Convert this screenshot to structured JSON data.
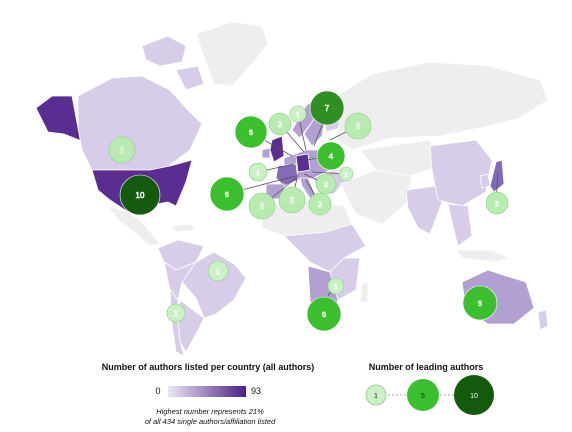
{
  "map": {
    "choropleth_legend": {
      "title": "Number of authors listed per country (all authors)",
      "min_label": "0",
      "max_label": "93",
      "color_min": "#ece7f4",
      "color_max": "#4b1f84",
      "note_line1": "Highest number represents 21%",
      "note_line2": "of all 434 single authors/affiliation listed"
    },
    "bubble_legend": {
      "title": "Number of leading authors",
      "items": [
        {
          "label": "1",
          "value": 1,
          "color": "#c9f1c4"
        },
        {
          "label": "5",
          "value": 5,
          "color": "#3cbf2e"
        },
        {
          "label": "10",
          "value": 10,
          "color": "#145a0d"
        }
      ]
    },
    "colors": {
      "land_default": "#eeeeee",
      "border": "#ffffff",
      "purple_light": "#d8cde8",
      "purple_mid": "#b3a0d2",
      "purple_dark": "#5a2e91",
      "bubble_1": "#c9f1c4",
      "bubble_2_3": "#b8ebb0",
      "bubble_4_5": "#3cbf2e",
      "bubble_7": "#2e8f22",
      "bubble_10": "#145a0d"
    },
    "leading_author_bubbles": [
      {
        "country": "Canada",
        "label": "2",
        "value": 2
      },
      {
        "country": "United States",
        "label": "10",
        "value": 10
      },
      {
        "country": "Brazil",
        "label": "1",
        "value": 1
      },
      {
        "country": "Chile",
        "label": "1",
        "value": 1
      },
      {
        "country": "United Kingdom",
        "label": "5",
        "value": 5
      },
      {
        "country": "Ireland",
        "label": "1",
        "value": 1
      },
      {
        "country": "Norway",
        "label": "2",
        "value": 2
      },
      {
        "country": "Denmark",
        "label": "1",
        "value": 1
      },
      {
        "country": "Sweden",
        "label": "7",
        "value": 7
      },
      {
        "country": "Finland",
        "label": "3",
        "value": 3
      },
      {
        "country": "Germany",
        "label": "4",
        "value": 4
      },
      {
        "country": "Poland",
        "label": "1",
        "value": 1
      },
      {
        "country": "Portugal",
        "label": "5",
        "value": 5
      },
      {
        "country": "Spain",
        "label": "3",
        "value": 3
      },
      {
        "country": "France",
        "label": "3",
        "value": 3
      },
      {
        "country": "Italy",
        "label": "2",
        "value": 2
      },
      {
        "country": "Austria",
        "label": "2",
        "value": 2
      },
      {
        "country": "South Africa",
        "label": "5",
        "value": 5
      },
      {
        "country": "Mozambique",
        "label": "1",
        "value": 1
      },
      {
        "country": "Japan",
        "label": "2",
        "value": 2
      },
      {
        "country": "Australia",
        "label": "5",
        "value": 5
      }
    ]
  }
}
